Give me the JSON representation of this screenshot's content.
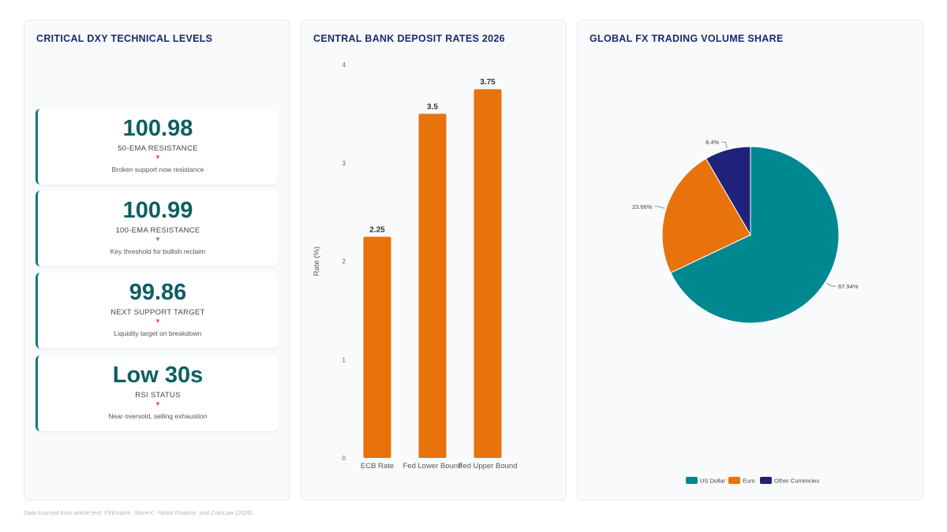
{
  "panels": {
    "levels": {
      "title": "CRITICAL DXY TECHNICAL LEVELS",
      "cards": [
        {
          "value": "100.98",
          "label": "50-EMA RESISTANCE",
          "arrow": "▼",
          "desc": "Broken support now resistance"
        },
        {
          "value": "100.99",
          "label": "100-EMA RESISTANCE",
          "arrow": "▼",
          "desc": "Key threshold for bullish reclaim"
        },
        {
          "value": "99.86",
          "label": "NEXT SUPPORT TARGET",
          "arrow": "▼",
          "desc": "Liquidity target on breakdown"
        },
        {
          "value": "Low 30s",
          "label": "RSI STATUS",
          "arrow": "▼",
          "desc": "Near oversold, selling exhaustion"
        }
      ]
    },
    "rates": {
      "title": "CENTRAL BANK DEPOSIT RATES 2026"
    },
    "share": {
      "title": "GLOBAL FX TRADING VOLUME SHARE"
    }
  },
  "footer": {
    "source": "Data sourced from article text, FXEmpire, StoneX, Yahoo Finance, and CoinLaw (2026)."
  },
  "chart_data": [
    {
      "type": "bar",
      "title": "CENTRAL BANK DEPOSIT RATES 2026",
      "categories": [
        "ECB Rate",
        "Fed Lower Bound",
        "Fed Upper Bound"
      ],
      "values": [
        2.25,
        3.5,
        3.75
      ],
      "value_labels": [
        "2.25",
        "3.5",
        "3.75"
      ],
      "ylabel": "Rate (%)",
      "xlabel": "",
      "ylim": [
        0,
        4
      ],
      "yticks": [
        "0",
        "1",
        "2",
        "3",
        "4"
      ],
      "color": "#e8720c",
      "grid": false
    },
    {
      "type": "pie",
      "title": "GLOBAL FX TRADING VOLUME SHARE",
      "labels": [
        "US Dollar",
        "Euro",
        "Other Currencies"
      ],
      "values": [
        67.94,
        23.66,
        8.4
      ],
      "value_labels": [
        "67.94%",
        "23.66%",
        "8.4%"
      ],
      "colors": [
        "#008891",
        "#e8720c",
        "#1f2278"
      ],
      "legend": "bottom"
    }
  ]
}
